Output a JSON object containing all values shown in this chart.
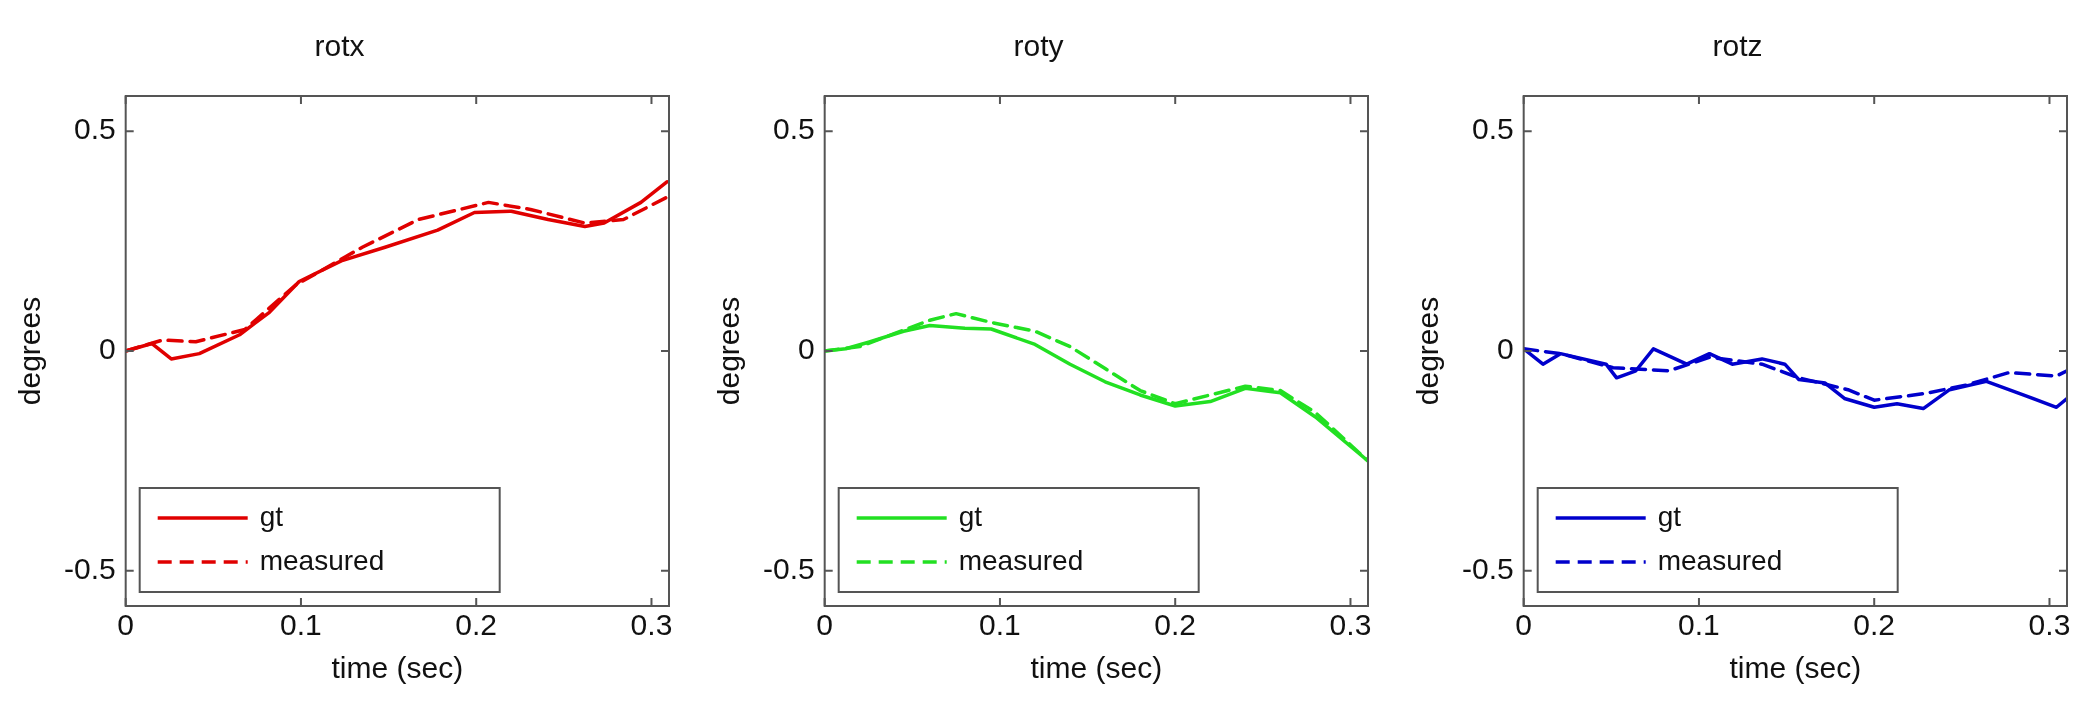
{
  "chart_data": [
    {
      "type": "line",
      "title": "rotx",
      "xlabel": "time (sec)",
      "ylabel": "degrees",
      "xlim": [
        0,
        0.31
      ],
      "xticks": [
        0,
        0.1,
        0.2,
        0.3
      ],
      "ylim": [
        -0.58,
        0.58
      ],
      "yticks": [
        -0.5,
        0,
        0.5
      ],
      "grid": false,
      "legend": "bottom left",
      "marker": "none",
      "series": [
        {
          "name": "gt",
          "color": "#e00000",
          "line_style": "solid",
          "x": [
            0,
            0.015,
            0.026,
            0.042,
            0.065,
            0.082,
            0.099,
            0.123,
            0.148,
            0.178,
            0.199,
            0.22,
            0.241,
            0.262,
            0.273,
            0.294,
            0.309
          ],
          "values": [
            0,
            0.017,
            -0.018,
            -0.006,
            0.037,
            0.088,
            0.158,
            0.205,
            0.236,
            0.275,
            0.315,
            0.318,
            0.299,
            0.283,
            0.291,
            0.338,
            0.385
          ]
        },
        {
          "name": "measured",
          "color": "#e00000",
          "line_style": "dashed",
          "x": [
            0,
            0.021,
            0.04,
            0.068,
            0.097,
            0.135,
            0.167,
            0.207,
            0.231,
            0.262,
            0.284,
            0.309
          ],
          "values": [
            0,
            0.025,
            0.021,
            0.049,
            0.15,
            0.236,
            0.299,
            0.338,
            0.322,
            0.291,
            0.299,
            0.35
          ]
        }
      ]
    },
    {
      "type": "line",
      "title": "roty",
      "xlabel": "time (sec)",
      "ylabel": "degrees",
      "xlim": [
        0,
        0.31
      ],
      "xticks": [
        0,
        0.1,
        0.2,
        0.3
      ],
      "ylim": [
        -0.58,
        0.58
      ],
      "yticks": [
        -0.5,
        0,
        0.5
      ],
      "grid": false,
      "legend": "bottom left",
      "marker": "none",
      "series": [
        {
          "name": "gt",
          "color": "#22e022",
          "line_style": "solid",
          "x": [
            0,
            0.012,
            0.025,
            0.045,
            0.06,
            0.08,
            0.095,
            0.12,
            0.14,
            0.16,
            0.18,
            0.2,
            0.22,
            0.24,
            0.26,
            0.28,
            0.31
          ],
          "values": [
            0,
            0.005,
            0.02,
            0.045,
            0.058,
            0.052,
            0.05,
            0.015,
            -0.03,
            -0.07,
            -0.1,
            -0.125,
            -0.115,
            -0.085,
            -0.095,
            -0.15,
            -0.25
          ]
        },
        {
          "name": "measured",
          "color": "#22e022",
          "line_style": "dashed",
          "x": [
            0,
            0.02,
            0.04,
            0.06,
            0.075,
            0.095,
            0.12,
            0.14,
            0.16,
            0.18,
            0.2,
            0.22,
            0.24,
            0.26,
            0.28,
            0.31
          ],
          "values": [
            0,
            0.01,
            0.04,
            0.07,
            0.085,
            0.065,
            0.045,
            0.01,
            -0.04,
            -0.09,
            -0.12,
            -0.1,
            -0.08,
            -0.09,
            -0.14,
            -0.25
          ]
        }
      ]
    },
    {
      "type": "line",
      "title": "rotz",
      "xlabel": "time (sec)",
      "ylabel": "degrees",
      "xlim": [
        0,
        0.31
      ],
      "xticks": [
        0,
        0.1,
        0.2,
        0.3
      ],
      "ylim": [
        -0.58,
        0.58
      ],
      "yticks": [
        -0.5,
        0,
        0.5
      ],
      "grid": false,
      "legend": "bottom left",
      "marker": "none",
      "series": [
        {
          "name": "gt",
          "color": "#0000cc",
          "line_style": "solid",
          "x": [
            0,
            0.011,
            0.021,
            0.047,
            0.053,
            0.064,
            0.074,
            0.093,
            0.106,
            0.119,
            0.136,
            0.149,
            0.157,
            0.172,
            0.183,
            0.2,
            0.213,
            0.228,
            0.243,
            0.264,
            0.285,
            0.304,
            0.31
          ],
          "values": [
            0.005,
            -0.03,
            -0.006,
            -0.03,
            -0.061,
            -0.045,
            0.005,
            -0.03,
            -0.006,
            -0.03,
            -0.018,
            -0.03,
            -0.065,
            -0.073,
            -0.108,
            -0.128,
            -0.12,
            -0.131,
            -0.088,
            -0.069,
            -0.1,
            -0.128,
            -0.108
          ]
        },
        {
          "name": "measured",
          "color": "#0000cc",
          "line_style": "dashed",
          "x": [
            0,
            0.021,
            0.051,
            0.083,
            0.106,
            0.136,
            0.157,
            0.185,
            0.2,
            0.23,
            0.253,
            0.277,
            0.304,
            0.31
          ],
          "values": [
            0.005,
            -0.006,
            -0.038,
            -0.045,
            -0.014,
            -0.03,
            -0.061,
            -0.088,
            -0.112,
            -0.096,
            -0.077,
            -0.049,
            -0.057,
            -0.045
          ]
        }
      ]
    }
  ]
}
